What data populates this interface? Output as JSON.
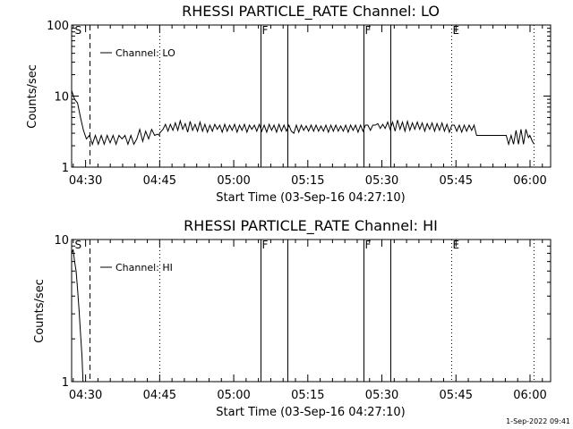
{
  "footer": {
    "timestamp": "1-Sep-2022 09:41"
  },
  "chart_data": [
    {
      "type": "line",
      "title": "RHESSI PARTICLE_RATE Channel: LO",
      "xlabel": "Start Time (03-Sep-16 04:27:10)",
      "ylabel": "Counts/sec",
      "x_unit": "minutes after 04:27:10",
      "xlim": [
        0,
        97
      ],
      "ylim": [
        1,
        100
      ],
      "yscale": "log",
      "x_ticks": [
        {
          "x": 2.83,
          "label": "04:30"
        },
        {
          "x": 17.83,
          "label": "04:45"
        },
        {
          "x": 32.83,
          "label": "05:00"
        },
        {
          "x": 47.83,
          "label": "05:15"
        },
        {
          "x": 62.83,
          "label": "05:30"
        },
        {
          "x": 77.83,
          "label": "05:45"
        },
        {
          "x": 92.83,
          "label": "06:00"
        }
      ],
      "y_ticks": [
        {
          "y": 1,
          "label": "1"
        },
        {
          "y": 10,
          "label": "10"
        },
        {
          "y": 100,
          "label": "100"
        }
      ],
      "legend": {
        "label": "Channel: LO",
        "position": "top-left"
      },
      "markers": [
        {
          "x": 0.4,
          "label": "S",
          "style": "none"
        },
        {
          "x": 3.6,
          "label": "",
          "style": "dashed"
        },
        {
          "x": 17.8,
          "label": "",
          "style": "dotted"
        },
        {
          "x": 38.2,
          "label": "F",
          "style": "solid"
        },
        {
          "x": 43.7,
          "label": "",
          "style": "solid"
        },
        {
          "x": 59.1,
          "label": "F",
          "style": "solid"
        },
        {
          "x": 64.6,
          "label": "",
          "style": "solid"
        },
        {
          "x": 76.9,
          "label": "E",
          "style": "dotted"
        },
        {
          "x": 93.6,
          "label": "",
          "style": "dotted"
        }
      ],
      "series": [
        {
          "style": "line",
          "points": [
            [
              0.0,
              12
            ],
            [
              0.6,
              9
            ],
            [
              1.2,
              8
            ],
            [
              1.8,
              5
            ],
            [
              2.4,
              3.3
            ],
            [
              3.0,
              2.5
            ],
            [
              3.6,
              2.8
            ],
            [
              4.2,
              2.1
            ],
            [
              4.8,
              2.8
            ],
            [
              5.4,
              2.1
            ],
            [
              6.0,
              2.8
            ],
            [
              6.6,
              2.1
            ],
            [
              7.2,
              2.8
            ],
            [
              7.8,
              2.2
            ],
            [
              8.4,
              2.8
            ],
            [
              9.0,
              2.1
            ],
            [
              9.6,
              2.8
            ],
            [
              10.2,
              2.5
            ],
            [
              10.8,
              2.8
            ],
            [
              11.4,
              2.1
            ],
            [
              12.0,
              2.8
            ],
            [
              12.6,
              2.1
            ],
            [
              13.2,
              2.5
            ],
            [
              13.8,
              3.4
            ],
            [
              14.4,
              2.3
            ],
            [
              15.0,
              3.2
            ],
            [
              15.6,
              2.5
            ],
            [
              16.2,
              3.4
            ],
            [
              16.8,
              2.8
            ],
            [
              17.4,
              2.9
            ],
            [
              17.8,
              2.8
            ],
            [
              17.8,
              3.0
            ],
            [
              18.5,
              3.4
            ],
            [
              19.0,
              4.0
            ],
            [
              19.5,
              3.2
            ],
            [
              20.0,
              4.0
            ],
            [
              20.5,
              3.3
            ],
            [
              21.0,
              4.2
            ],
            [
              21.5,
              3.3
            ],
            [
              22.0,
              4.5
            ],
            [
              22.5,
              3.4
            ],
            [
              23.0,
              4.1
            ],
            [
              23.5,
              3.1
            ],
            [
              24.0,
              4.4
            ],
            [
              24.5,
              3.3
            ],
            [
              25.0,
              4.0
            ],
            [
              25.5,
              3.2
            ],
            [
              26.0,
              4.3
            ],
            [
              26.5,
              3.2
            ],
            [
              27.0,
              4.0
            ],
            [
              27.5,
              3.1
            ],
            [
              28.0,
              3.9
            ],
            [
              28.5,
              3.2
            ],
            [
              29.0,
              4.0
            ],
            [
              29.5,
              3.4
            ],
            [
              30.0,
              3.9
            ],
            [
              30.5,
              3.1
            ],
            [
              31.0,
              4.0
            ],
            [
              31.5,
              3.2
            ],
            [
              32.0,
              3.9
            ],
            [
              32.5,
              3.3
            ],
            [
              33.0,
              4.0
            ],
            [
              33.5,
              3.1
            ],
            [
              34.0,
              3.9
            ],
            [
              34.5,
              3.3
            ],
            [
              35.0,
              4.0
            ],
            [
              35.5,
              3.1
            ],
            [
              36.0,
              3.9
            ],
            [
              36.5,
              3.4
            ],
            [
              37.0,
              3.9
            ],
            [
              37.5,
              3.2
            ],
            [
              38.0,
              4.0
            ],
            [
              38.5,
              3.2
            ],
            [
              39.0,
              3.9
            ],
            [
              39.5,
              3.1
            ],
            [
              40.0,
              4.0
            ],
            [
              40.5,
              3.3
            ],
            [
              41.0,
              3.9
            ],
            [
              41.5,
              3.1
            ],
            [
              42.0,
              4.0
            ],
            [
              42.5,
              3.2
            ],
            [
              43.0,
              3.9
            ],
            [
              43.5,
              3.2
            ],
            [
              44.0,
              3.9
            ],
            [
              44.5,
              3.2
            ],
            [
              45.0,
              3.0
            ],
            [
              45.5,
              3.9
            ],
            [
              46.0,
              3.1
            ],
            [
              46.5,
              3.9
            ],
            [
              47.0,
              3.3
            ],
            [
              47.5,
              3.8
            ],
            [
              48.0,
              3.2
            ],
            [
              48.5,
              3.9
            ],
            [
              49.0,
              3.2
            ],
            [
              49.5,
              3.9
            ],
            [
              50.0,
              3.2
            ],
            [
              50.5,
              3.8
            ],
            [
              51.0,
              3.2
            ],
            [
              51.5,
              3.9
            ],
            [
              52.0,
              3.1
            ],
            [
              52.5,
              3.9
            ],
            [
              53.0,
              3.2
            ],
            [
              53.5,
              3.9
            ],
            [
              54.0,
              3.2
            ],
            [
              54.5,
              3.8
            ],
            [
              55.0,
              3.2
            ],
            [
              55.5,
              3.9
            ],
            [
              56.0,
              3.1
            ],
            [
              56.5,
              3.9
            ],
            [
              57.0,
              3.3
            ],
            [
              57.5,
              3.9
            ],
            [
              58.0,
              3.1
            ],
            [
              58.5,
              3.9
            ],
            [
              59.0,
              3.2
            ],
            [
              59.5,
              3.9
            ],
            [
              60.0,
              3.9
            ],
            [
              60.5,
              3.3
            ],
            [
              61.0,
              3.9
            ],
            [
              61.5,
              3.9
            ],
            [
              62.0,
              4.1
            ],
            [
              62.5,
              3.5
            ],
            [
              63.0,
              4.0
            ],
            [
              63.5,
              3.5
            ],
            [
              64.0,
              4.3
            ],
            [
              64.5,
              3.4
            ],
            [
              65.0,
              4.3
            ],
            [
              65.5,
              3.2
            ],
            [
              66.0,
              4.6
            ],
            [
              66.5,
              3.4
            ],
            [
              67.0,
              4.3
            ],
            [
              67.5,
              3.2
            ],
            [
              68.0,
              4.4
            ],
            [
              68.5,
              3.3
            ],
            [
              69.0,
              4.2
            ],
            [
              69.5,
              3.4
            ],
            [
              70.0,
              4.3
            ],
            [
              70.5,
              3.4
            ],
            [
              71.0,
              4.2
            ],
            [
              71.5,
              3.2
            ],
            [
              72.0,
              4.1
            ],
            [
              72.5,
              3.4
            ],
            [
              73.0,
              4.2
            ],
            [
              73.5,
              3.2
            ],
            [
              74.0,
              4.1
            ],
            [
              74.5,
              3.3
            ],
            [
              75.0,
              4.2
            ],
            [
              75.5,
              3.2
            ],
            [
              76.0,
              4.0
            ],
            [
              76.5,
              3.1
            ],
            [
              77.0,
              3.9
            ],
            [
              77.5,
              3.9
            ],
            [
              78.0,
              3.2
            ],
            [
              78.5,
              3.9
            ],
            [
              79.0,
              3.1
            ],
            [
              79.5,
              3.9
            ],
            [
              80.0,
              3.2
            ],
            [
              80.5,
              3.9
            ],
            [
              81.0,
              3.3
            ],
            [
              81.5,
              3.9
            ],
            [
              82.0,
              2.8
            ],
            [
              85.0,
              2.8
            ],
            [
              88.0,
              2.8
            ],
            [
              88.5,
              2.1
            ],
            [
              89.0,
              2.8
            ],
            [
              89.5,
              2.1
            ],
            [
              90.0,
              3.3
            ],
            [
              90.5,
              2.1
            ],
            [
              91.0,
              3.4
            ],
            [
              91.5,
              2.1
            ],
            [
              92.0,
              3.4
            ],
            [
              92.5,
              2.6
            ],
            [
              92.8,
              2.8
            ],
            [
              93.3,
              2.3
            ],
            [
              93.7,
              2.1
            ]
          ]
        }
      ]
    },
    {
      "type": "line",
      "title": "RHESSI PARTICLE_RATE Channel: HI",
      "xlabel": "Start Time (03-Sep-16 04:27:10)",
      "ylabel": "Counts/sec",
      "x_unit": "minutes after 04:27:10",
      "xlim": [
        0,
        97
      ],
      "ylim": [
        1,
        10
      ],
      "yscale": "log",
      "x_ticks": [
        {
          "x": 2.83,
          "label": "04:30"
        },
        {
          "x": 17.83,
          "label": "04:45"
        },
        {
          "x": 32.83,
          "label": "05:00"
        },
        {
          "x": 47.83,
          "label": "05:15"
        },
        {
          "x": 62.83,
          "label": "05:30"
        },
        {
          "x": 77.83,
          "label": "05:45"
        },
        {
          "x": 92.83,
          "label": "06:00"
        }
      ],
      "y_ticks": [
        {
          "y": 1,
          "label": "1"
        },
        {
          "y": 10,
          "label": "10"
        }
      ],
      "legend": {
        "label": "Channel: HI",
        "position": "top-left"
      },
      "markers": [
        {
          "x": 0.4,
          "label": "S",
          "style": "none"
        },
        {
          "x": 3.6,
          "label": "",
          "style": "dashed"
        },
        {
          "x": 17.8,
          "label": "",
          "style": "dotted"
        },
        {
          "x": 38.2,
          "label": "F",
          "style": "solid"
        },
        {
          "x": 43.7,
          "label": "",
          "style": "solid"
        },
        {
          "x": 59.1,
          "label": "F",
          "style": "solid"
        },
        {
          "x": 64.6,
          "label": "",
          "style": "solid"
        },
        {
          "x": 76.9,
          "label": "E",
          "style": "dotted"
        },
        {
          "x": 93.6,
          "label": "",
          "style": "dotted"
        }
      ],
      "series": [
        {
          "style": "line",
          "points": [
            [
              0.0,
              8
            ],
            [
              0.3,
              8.5
            ],
            [
              0.6,
              7
            ],
            [
              0.9,
              6
            ],
            [
              1.2,
              4.5
            ],
            [
              1.5,
              3.2
            ],
            [
              1.8,
              2.2
            ],
            [
              2.1,
              1.5
            ],
            [
              2.3,
              1.0
            ]
          ]
        }
      ]
    }
  ]
}
